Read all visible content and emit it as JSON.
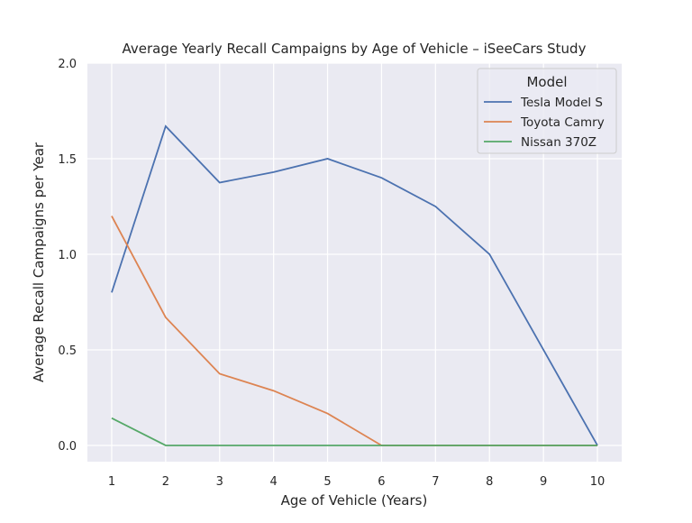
{
  "chart_data": {
    "type": "line",
    "title": "Average Yearly Recall Campaigns by Age of Vehicle – iSeeCars Study",
    "xlabel": "Age of Vehicle (Years)",
    "ylabel": "Average Recall Campaigns per Year",
    "x": [
      1,
      2,
      3,
      4,
      5,
      6,
      7,
      8,
      9,
      10
    ],
    "xticks": [
      "1",
      "2",
      "3",
      "4",
      "5",
      "6",
      "7",
      "8",
      "9",
      "10"
    ],
    "yticks": [
      "0.0",
      "0.5",
      "1.0",
      "1.5",
      "2.0"
    ],
    "xlim": [
      0.55,
      10.45
    ],
    "ylim": [
      -0.085,
      2.0
    ],
    "grid": true,
    "legend": {
      "title": "Model",
      "placement": "top-right"
    },
    "series": [
      {
        "name": "Tesla Model S",
        "color": "#4c72b0",
        "values": [
          0.8,
          1.67,
          1.375,
          1.43,
          1.5,
          1.4,
          1.25,
          1.0,
          0.5,
          0.0
        ]
      },
      {
        "name": "Toyota Camry",
        "color": "#dd8452",
        "values": [
          1.2,
          0.67,
          0.375,
          0.286,
          0.167,
          0.0,
          0.0,
          0.0,
          0.0,
          0.0
        ]
      },
      {
        "name": "Nissan 370Z",
        "color": "#55a868",
        "values": [
          0.143,
          0.0,
          0.0,
          0.0,
          0.0,
          0.0,
          0.0,
          0.0,
          0.0,
          0.0
        ]
      }
    ]
  }
}
